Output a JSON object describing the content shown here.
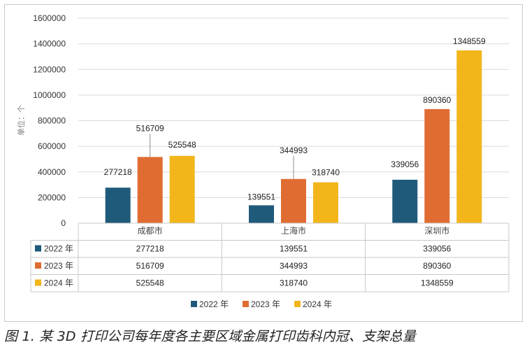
{
  "chart_data": {
    "type": "bar",
    "ylabel": "单位：个",
    "ylim": [
      0,
      1600000
    ],
    "yticks": [
      "0",
      "200000",
      "400000",
      "600000",
      "800000",
      "1000000",
      "1200000",
      "1400000",
      "1600000"
    ],
    "ytick_values": [
      0,
      200000,
      400000,
      600000,
      800000,
      1000000,
      1200000,
      1400000,
      1600000
    ],
    "categories": [
      "成都市",
      "上海市",
      "深圳市"
    ],
    "series": [
      {
        "name": "2022 年",
        "color": "#1f5a7a",
        "values": [
          277218,
          139551,
          339056
        ]
      },
      {
        "name": "2023 年",
        "color": "#e06c32",
        "values": [
          516709,
          344993,
          890360
        ]
      },
      {
        "name": "2024 年",
        "color": "#f2b61b",
        "values": [
          525548,
          318740,
          1348559
        ]
      }
    ],
    "data_labels": [
      [
        "277218",
        "139551",
        "339056"
      ],
      [
        "516709",
        "344993",
        "890360"
      ],
      [
        "525548",
        "318740",
        "1348559"
      ]
    ],
    "legend_position": "bottom",
    "grid": true,
    "data_table": true
  },
  "caption": "图 1. 某 3D 打印公司每年度各主要区域金属打印齿科内冠、支架总量"
}
